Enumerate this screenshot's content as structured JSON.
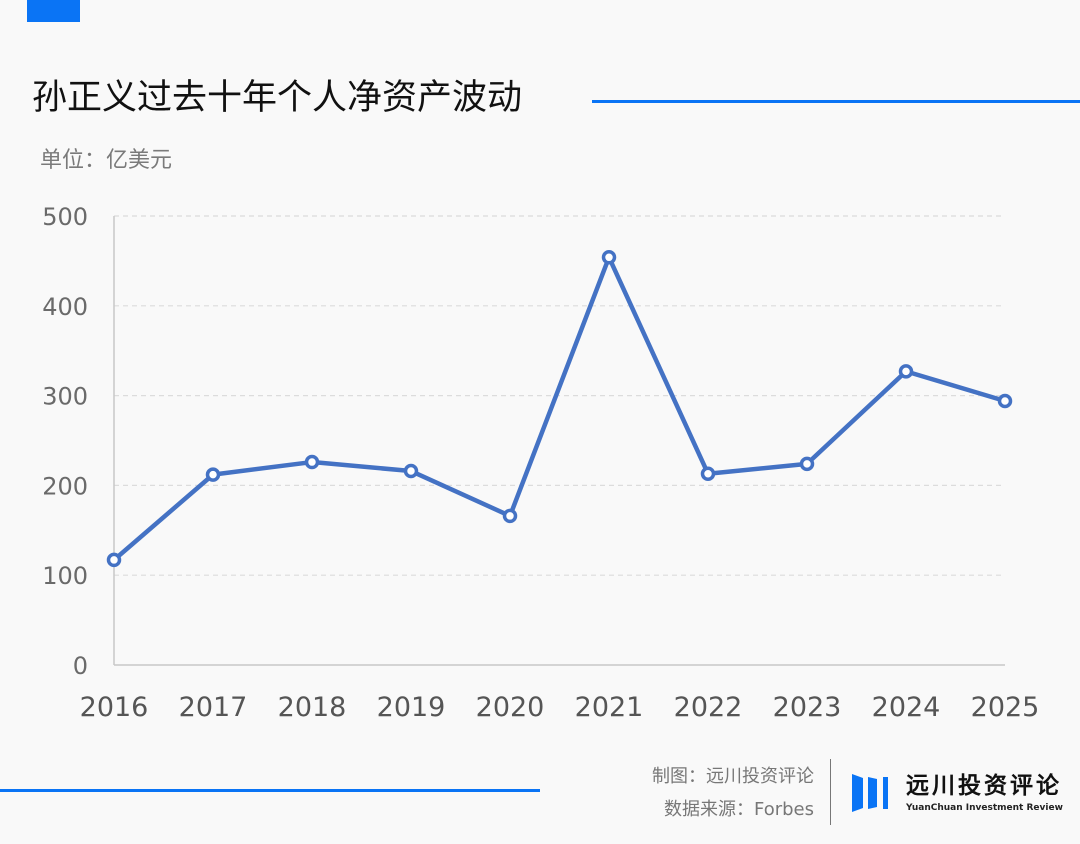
{
  "header": {
    "title": "孙正义过去十年个人净资产波动",
    "unit": "单位：亿美元"
  },
  "footer": {
    "made_by": "制图：远川投资评论",
    "source": "数据来源：Forbes",
    "logo_cn": "远川投资评论",
    "logo_en": "YuanChuan Investment Review"
  },
  "colors": {
    "accent": "#0a74f5",
    "line": "#4472c4",
    "grid": "#dcdcdc",
    "background": "#f9f9f9"
  },
  "chart_data": {
    "type": "line",
    "title": "孙正义过去十年个人净资产波动",
    "xlabel": "",
    "ylabel": "单位：亿美元",
    "categories": [
      "2016",
      "2017",
      "2018",
      "2019",
      "2020",
      "2021",
      "2022",
      "2023",
      "2024",
      "2025"
    ],
    "series": [
      {
        "name": "个人净资产（亿美元）",
        "values": [
          117,
          212,
          226,
          216,
          166,
          454,
          213,
          224,
          327,
          294
        ]
      }
    ],
    "yticks": [
      "0",
      "100",
      "200",
      "300",
      "400",
      "500"
    ],
    "ylim": [
      0,
      500
    ],
    "grid": true,
    "legend": "none",
    "source": "Forbes"
  }
}
